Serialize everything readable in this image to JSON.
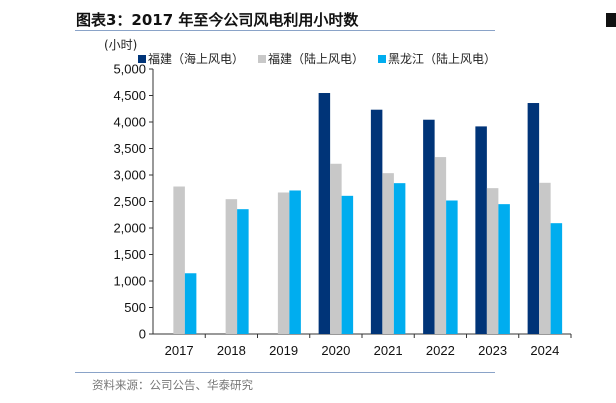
{
  "title": "图表3：2017 年至今公司风电利用小时数",
  "source": "资料来源：公司公告、华泰研究",
  "chart_data": {
    "type": "bar",
    "title": "图表3：2017 年至今公司风电利用小时数",
    "ylabel": "(小时)",
    "xlabel": "",
    "ylim": [
      0,
      5000
    ],
    "yticks": [
      "0",
      "500",
      "1,000",
      "1,500",
      "2,000",
      "2,500",
      "3,000",
      "3,500",
      "4,000",
      "4,500",
      "5,000"
    ],
    "categories": [
      "2017",
      "2018",
      "2019",
      "2020",
      "2021",
      "2022",
      "2023",
      "2024"
    ],
    "legend_position": "top",
    "grid": false,
    "series": [
      {
        "name": "福建（海上风电）",
        "color": "#003478",
        "values": [
          null,
          null,
          null,
          4547,
          4232,
          4043,
          3917,
          4358
        ]
      },
      {
        "name": "福建（陆上风电）",
        "color": "#c8c8c8",
        "values": [
          2783,
          2544,
          2670,
          3212,
          3035,
          3338,
          2752,
          2853
        ]
      },
      {
        "name": "黑龙江（陆上风电）",
        "color": "#00adef",
        "values": [
          1146,
          2355,
          2708,
          2607,
          2846,
          2519,
          2450,
          2091
        ]
      }
    ]
  }
}
